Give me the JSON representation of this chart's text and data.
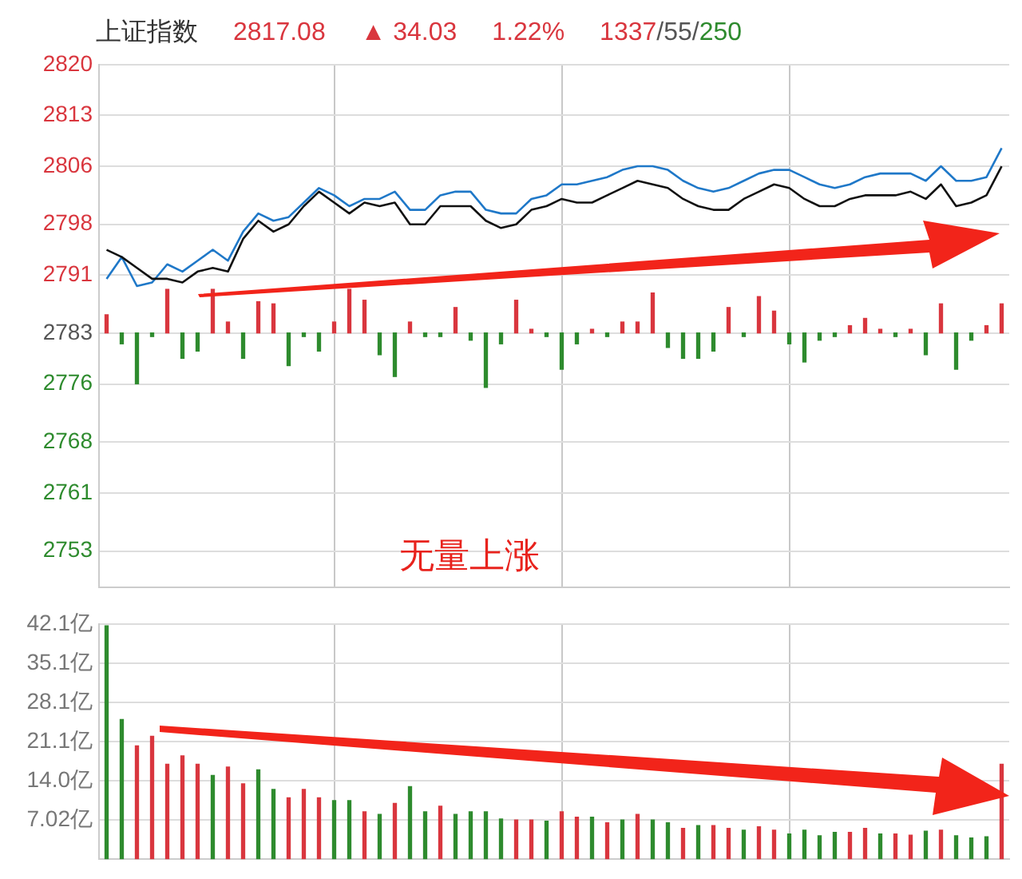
{
  "chart_data": [
    {
      "type": "line",
      "title": "上证指数",
      "annotations": [
        "2817.08",
        "▲ 34.03",
        "1.22%",
        "1337/55/250",
        "无量上涨"
      ],
      "categories": [
        null,
        null,
        null,
        null,
        null,
        null,
        null,
        null,
        null,
        null,
        null,
        null,
        null,
        null,
        null,
        null,
        null,
        null,
        null,
        null,
        null,
        null,
        null,
        null,
        null,
        null,
        null,
        null,
        null,
        null,
        null,
        null,
        null,
        null,
        null,
        null,
        null,
        null,
        null,
        null,
        null,
        null,
        null,
        null,
        null,
        null,
        null,
        null,
        null,
        null,
        null,
        null,
        null,
        null,
        null,
        null,
        null,
        null,
        null,
        null
      ],
      "series": [
        {
          "type": "line",
          "color": "#111111",
          "values": [
            2794.5,
            2793.5,
            2792,
            2790.5,
            2790.5,
            2790,
            2791.5,
            2792,
            2791.5,
            2796,
            2798.5,
            2797,
            2798,
            2800.5,
            2802.5,
            2801,
            2799.5,
            2801,
            2800.5,
            2801,
            2798,
            2798,
            2800.5,
            2800.5,
            2800.5,
            2798.5,
            2797.5,
            2798,
            2800,
            2800.5,
            2801.5,
            2801,
            2801,
            2802,
            2803,
            2804,
            2803.5,
            2803,
            2801.5,
            2800.5,
            2800,
            2800,
            2801.5,
            2802.5,
            2803.5,
            2803,
            2801.5,
            2800.5,
            2800.5,
            2801.5,
            2802,
            2802,
            2802,
            2802.5,
            2801.5,
            2803.5,
            2800.5,
            2801,
            2802,
            2806
          ]
        },
        {
          "type": "line",
          "color": "#1f78c8",
          "values": [
            2790.5,
            2793.5,
            2789.5,
            2790,
            2792.5,
            2791.5,
            2793,
            2794.5,
            2793,
            2797,
            2799.5,
            2798.5,
            2799,
            2801,
            2803,
            2802,
            2800.5,
            2801.5,
            2801.5,
            2802.5,
            2800,
            2800,
            2802,
            2802.5,
            2802.5,
            2800,
            2799.5,
            2799.5,
            2801.5,
            2802,
            2803.5,
            2803.5,
            2804,
            2804.5,
            2805.5,
            2806,
            2806,
            2805.5,
            2804,
            2803,
            2802.5,
            2803,
            2804,
            2805,
            2805.5,
            2805.5,
            2804.5,
            2803.5,
            2803,
            2803.5,
            2804.5,
            2805,
            2805,
            2805,
            2804,
            2806,
            2804,
            2804,
            2804.5,
            2808.5
          ]
        },
        {
          "type": "bar",
          "base": [
            2783.05,
            2783.05,
            2783.05,
            2783.05,
            2783.05,
            2783.05,
            2783.05,
            2783.05,
            2783.05,
            2783.05,
            2783.05,
            2783.05,
            2783.05,
            2783.05,
            2783.05,
            2783.05,
            2783.05,
            2783.05,
            2783.05,
            2783.05,
            2783.05,
            2783.05,
            2783.05,
            2783.05,
            2783.05,
            2783.05,
            2783.05,
            2783.05,
            2783.05,
            2783.05,
            2783.05,
            2783.05,
            2783.05,
            2783.05,
            2783.05,
            2783.05,
            2783.05,
            2783.05,
            2783.05,
            2783.05,
            2783.05,
            2783.05,
            2783.05,
            2783.05,
            2783.05,
            2783.05,
            2783.05,
            2783.05,
            2783.05,
            2783.05,
            2783.05,
            2783.05,
            2783.05,
            2783.05,
            2783.05,
            2783.05,
            2783.05,
            2783.05,
            2783.05,
            2783.05
          ],
          "values": [
            2.5,
            -1.5,
            -7,
            -0.5,
            6,
            -3.5,
            -2.5,
            6,
            1.5,
            -3.5,
            4.3,
            4,
            -4.5,
            -0.5,
            -2.5,
            1.5,
            6,
            4.5,
            -3,
            -6,
            1.5,
            -0.5,
            -0.5,
            3.5,
            -1,
            -7.5,
            -1.5,
            4.5,
            0.5,
            -0.5,
            -5,
            -1.5,
            0.5,
            -0.5,
            1.5,
            1.5,
            5.5,
            -2,
            -3.5,
            -3.5,
            -2.5,
            3.5,
            -0.5,
            5,
            3,
            -1.5,
            -4,
            -1,
            -0.5,
            1,
            2,
            0.5,
            -0.5,
            0.5,
            -3,
            4,
            -5,
            -1,
            1,
            4
          ],
          "colors": [
            "#d9363e",
            "#2e8b2e",
            "#2e8b2e",
            "#2e8b2e",
            "#d9363e",
            "#2e8b2e",
            "#2e8b2e",
            "#d9363e",
            "#d9363e",
            "#2e8b2e",
            "#d9363e",
            "#d9363e",
            "#2e8b2e",
            "#2e8b2e",
            "#2e8b2e",
            "#d9363e",
            "#d9363e",
            "#d9363e",
            "#2e8b2e",
            "#2e8b2e",
            "#d9363e",
            "#2e8b2e",
            "#2e8b2e",
            "#d9363e",
            "#2e8b2e",
            "#2e8b2e",
            "#2e8b2e",
            "#d9363e",
            "#d9363e",
            "#2e8b2e",
            "#2e8b2e",
            "#2e8b2e",
            "#d9363e",
            "#2e8b2e",
            "#d9363e",
            "#d9363e",
            "#d9363e",
            "#2e8b2e",
            "#2e8b2e",
            "#2e8b2e",
            "#2e8b2e",
            "#d9363e",
            "#2e8b2e",
            "#d9363e",
            "#d9363e",
            "#2e8b2e",
            "#2e8b2e",
            "#2e8b2e",
            "#2e8b2e",
            "#d9363e",
            "#d9363e",
            "#d9363e",
            "#2e8b2e",
            "#d9363e",
            "#2e8b2e",
            "#d9363e",
            "#2e8b2e",
            "#2e8b2e",
            "#d9363e",
            "#d9363e"
          ]
        }
      ],
      "ylim": [
        2748,
        2820
      ],
      "yticks": [
        2820,
        2813,
        2806,
        2798,
        2791,
        2783,
        2776,
        2768,
        2761,
        2753
      ],
      "grid": true
    },
    {
      "type": "bar",
      "categories": [
        null,
        null,
        null,
        null,
        null,
        null,
        null,
        null,
        null,
        null,
        null,
        null,
        null,
        null,
        null,
        null,
        null,
        null,
        null,
        null,
        null,
        null,
        null,
        null,
        null,
        null,
        null,
        null,
        null,
        null,
        null,
        null,
        null,
        null,
        null,
        null,
        null,
        null,
        null,
        null,
        null,
        null,
        null,
        null,
        null,
        null,
        null,
        null,
        null,
        null,
        null,
        null,
        null,
        null,
        null,
        null,
        null,
        null,
        null,
        null
      ],
      "values": [
        41.8,
        25,
        20.3,
        22,
        17,
        18.5,
        17,
        15,
        16.5,
        13.5,
        16,
        12.5,
        11,
        12.5,
        11,
        10.5,
        10.5,
        8.5,
        8,
        10,
        13,
        8.5,
        9.5,
        8,
        8.5,
        8.5,
        7.2,
        7,
        7,
        6.8,
        8.5,
        7.5,
        7.5,
        6.5,
        7,
        8,
        7,
        6.5,
        5.5,
        6,
        6,
        5.5,
        5.2,
        5.8,
        5.2,
        4.5,
        5.2,
        4.2,
        4.8,
        4.8,
        5.5,
        4.5,
        4.5,
        4.3,
        5,
        5.2,
        4.2,
        3.8,
        4,
        17
      ],
      "colors": [
        "#2e8b2e",
        "#2e8b2e",
        "#d9363e",
        "#d9363e",
        "#d9363e",
        "#d9363e",
        "#d9363e",
        "#2e8b2e",
        "#d9363e",
        "#d9363e",
        "#2e8b2e",
        "#2e8b2e",
        "#d9363e",
        "#d9363e",
        "#d9363e",
        "#2e8b2e",
        "#2e8b2e",
        "#d9363e",
        "#2e8b2e",
        "#d9363e",
        "#2e8b2e",
        "#2e8b2e",
        "#d9363e",
        "#2e8b2e",
        "#2e8b2e",
        "#2e8b2e",
        "#2e8b2e",
        "#d9363e",
        "#d9363e",
        "#2e8b2e",
        "#d9363e",
        "#d9363e",
        "#2e8b2e",
        "#d9363e",
        "#2e8b2e",
        "#d9363e",
        "#2e8b2e",
        "#2e8b2e",
        "#d9363e",
        "#2e8b2e",
        "#d9363e",
        "#d9363e",
        "#2e8b2e",
        "#d9363e",
        "#d9363e",
        "#2e8b2e",
        "#2e8b2e",
        "#2e8b2e",
        "#2e8b2e",
        "#d9363e",
        "#d9363e",
        "#2e8b2e",
        "#d9363e",
        "#d9363e",
        "#2e8b2e",
        "#d9363e",
        "#2e8b2e",
        "#2e8b2e",
        "#2e8b2e",
        "#d9363e"
      ],
      "ylim": [
        0,
        42.12
      ],
      "yticks": [
        {
          "value": 7.02,
          "label": "7.02亿"
        },
        {
          "value": 14.04,
          "label": "14.0亿"
        },
        {
          "value": 21.06,
          "label": "21.1亿"
        },
        {
          "value": 28.08,
          "label": "28.1亿"
        },
        {
          "value": 35.1,
          "label": "35.1亿"
        },
        {
          "value": 42.12,
          "label": "42.1亿"
        }
      ],
      "grid": true
    }
  ]
}
